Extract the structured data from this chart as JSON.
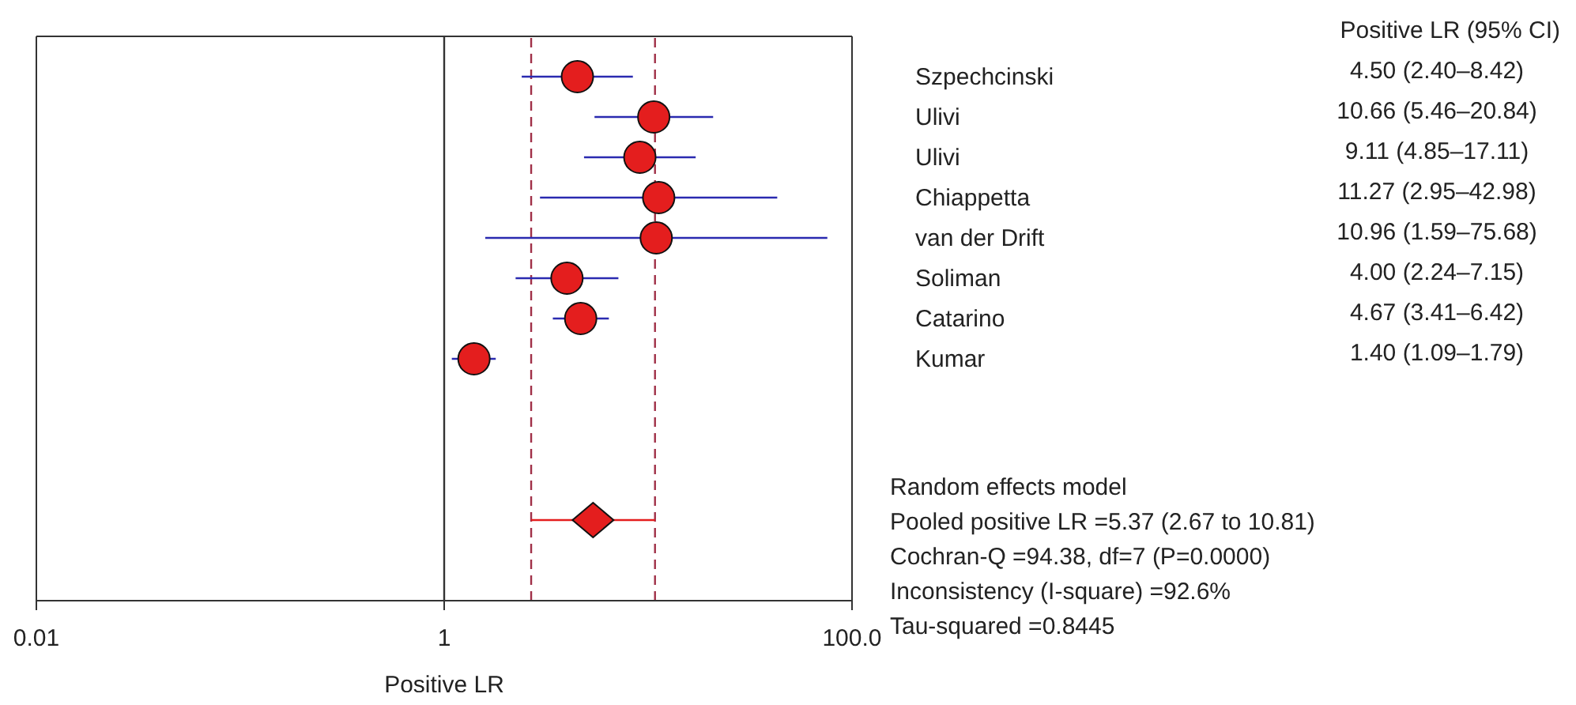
{
  "chart_data": {
    "type": "scatter",
    "orientation": "horizontal",
    "xlabel": "Positive LR",
    "log": "x",
    "marker": "circle",
    "categories": [
      "Szpechcinski",
      "Ulivi",
      "Ulivi",
      "Chiappetta",
      "van der Drift",
      "Soliman",
      "Catarino",
      "Kumar",
      null,
      null,
      null,
      null
    ],
    "xlim": [
      0.01,
      100
    ],
    "xticks": [
      0.01,
      1,
      {
        "value": 100,
        "label": "100.0"
      }
    ],
    "series": [
      {
        "color": "#e41e1e",
        "values": [
          4.5,
          10.66,
          9.11,
          11.27,
          10.96,
          4.0,
          4.67,
          1.4,
          null,
          null,
          null,
          null
        ],
        "errors": [
          [
            2.4,
            8.42
          ],
          [
            5.46,
            20.84
          ],
          [
            4.85,
            17.11
          ],
          [
            2.95,
            42.98
          ],
          [
            1.59,
            75.68
          ],
          [
            2.24,
            7.15
          ],
          [
            3.41,
            6.42
          ],
          [
            1.09,
            1.79
          ],
          null,
          null,
          null,
          null
        ],
        "value_labels": [
          "4.50 (2.40–8.42)",
          "10.66 (5.46–20.84)",
          "9.11 (4.85–17.11)",
          "11.27 (2.95–42.98)",
          "10.96 (1.59–75.68)",
          "4.00 (2.24–7.15)",
          "4.67 (3.41–6.42)",
          "1.40 (1.09–1.79)",
          null,
          null,
          null,
          null
        ]
      },
      {
        "color": "#e41e1e",
        "marker": "diamond",
        "values": [
          null,
          null,
          null,
          null,
          null,
          null,
          null,
          null,
          null,
          null,
          null,
          5.37
        ],
        "errors": [
          null,
          null,
          null,
          null,
          null,
          null,
          null,
          null,
          null,
          null,
          null,
          [
            2.67,
            10.81
          ]
        ]
      }
    ],
    "ref_lines": [
      {
        "axis": "x",
        "value": 1,
        "color": "#333333",
        "line_style": "solid"
      },
      {
        "axis": "x",
        "value": 2.67,
        "color": "#a03048",
        "line_style": "dashed"
      },
      {
        "axis": "x",
        "value": 10.81,
        "color": "#a03048",
        "line_style": "dashed"
      }
    ],
    "annotations": [
      "Positive LR (95% CI)",
      "Random effects model",
      "Pooled positive LR =5.37 (2.67 to 10.81)",
      "Cochran-Q =94.38, df=7 (P=0.0000)",
      "Inconsistency (I-square) =92.6%",
      "Tau-squared =0.8445"
    ]
  }
}
